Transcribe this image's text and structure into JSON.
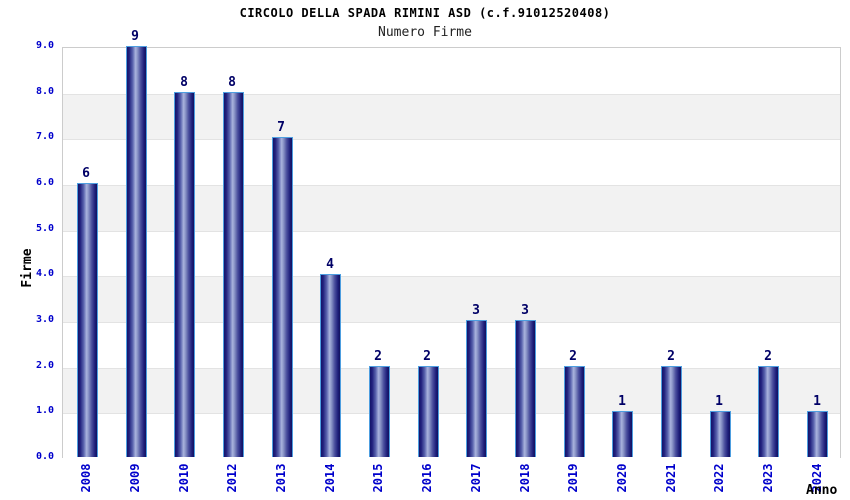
{
  "header": {
    "title": "CIRCOLO DELLA SPADA RIMINI ASD (c.f.91012520408)",
    "subtitle": "Numero Firme"
  },
  "chart_data": {
    "type": "bar",
    "title": "CIRCOLO DELLA SPADA RIMINI ASD (c.f.91012520408)",
    "subtitle": "Numero Firme",
    "categories": [
      "2008",
      "2009",
      "2010",
      "2012",
      "2013",
      "2014",
      "2015",
      "2016",
      "2017",
      "2018",
      "2019",
      "2020",
      "2021",
      "2022",
      "2023",
      "2024"
    ],
    "values": [
      6,
      9,
      8,
      8,
      7,
      4,
      2,
      2,
      3,
      3,
      2,
      1,
      2,
      1,
      2,
      1
    ],
    "xlabel": "Anno",
    "ylabel": "Firme",
    "ylim": [
      0,
      9
    ],
    "ytick_step": 1,
    "ytick_labels": [
      "0.0",
      "1.0",
      "2.0",
      "3.0",
      "4.0",
      "5.0",
      "6.0",
      "7.0",
      "8.0",
      "9.0"
    ],
    "grid": "horizontal alternating bands, gridline at each integer",
    "legend": "none",
    "colors": {
      "tick_label": "#0000cc",
      "value_label": "#000066",
      "bar_dark": "#14146a",
      "bar_highlight": "#aab4de",
      "bar_border": "#4d9ee0",
      "band_light": "#ffffff",
      "band_dark": "#f2f2f2",
      "grid_line": "#e3e3e3",
      "plot_border": "#cccccc",
      "title": "#000000",
      "subtitle": "#222222"
    }
  }
}
